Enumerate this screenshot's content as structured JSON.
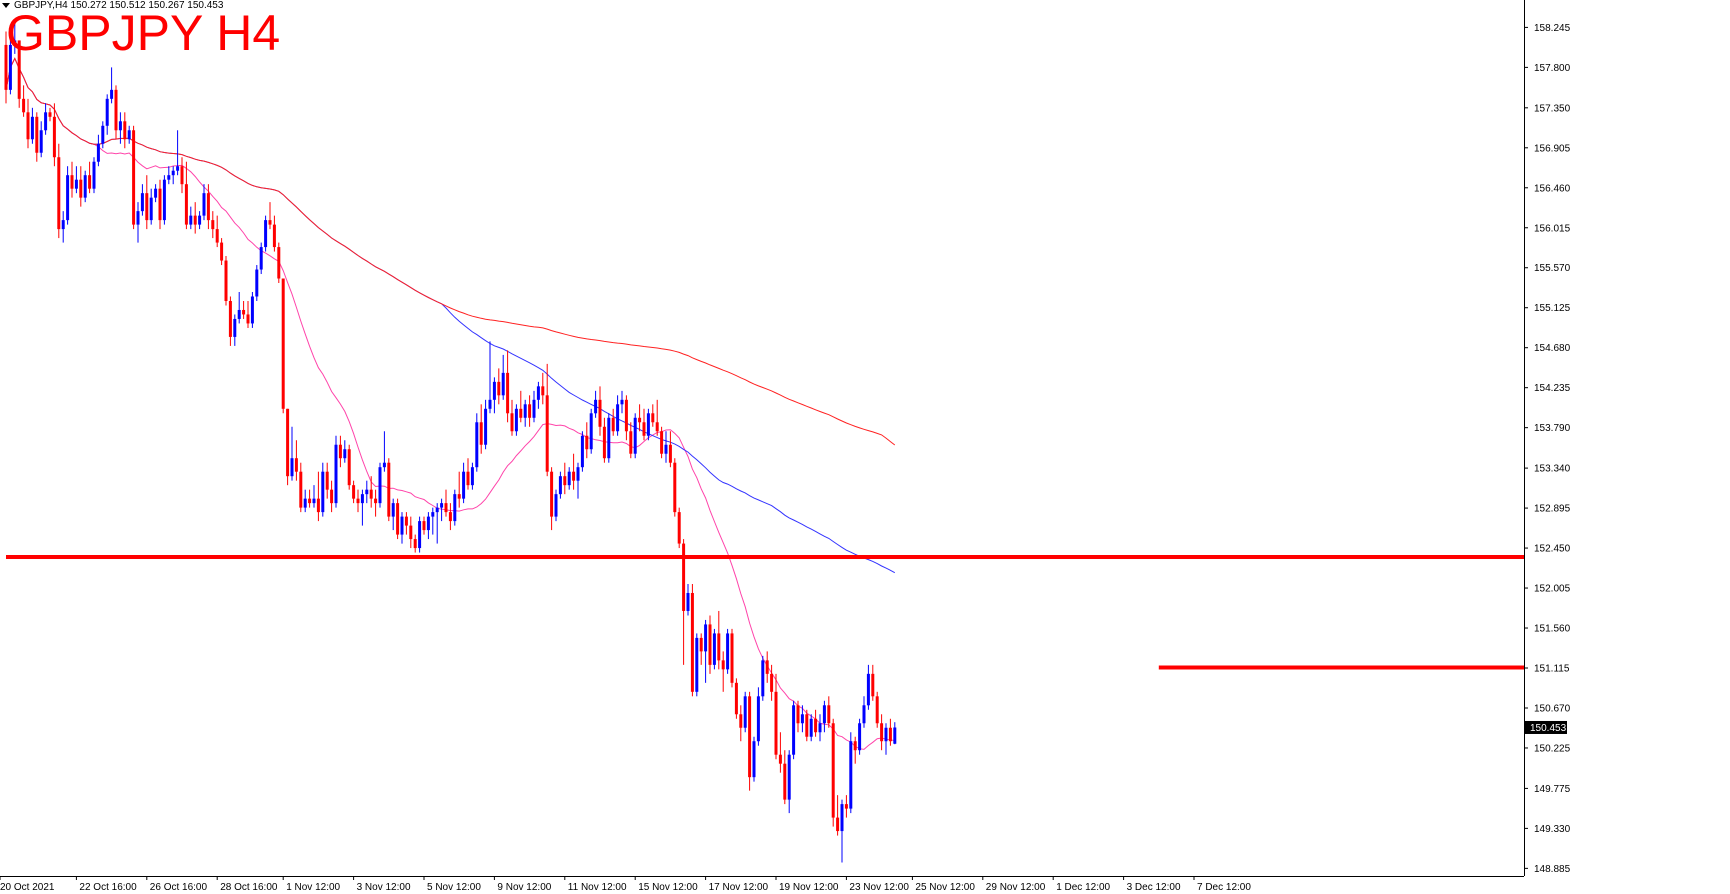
{
  "header": {
    "info_line": "GBPJPY,H4  150.272 150.512 150.267 150.453",
    "big_title": "GBPJPY H4"
  },
  "colors": {
    "background": "#ffffff",
    "bull_candle": "#0000ff",
    "bear_candle": "#ff0000",
    "ma_fast": "#ff44aa",
    "ma_mid": "#3333ff",
    "ma_slow": "#ff2222",
    "hline": "#ff0000",
    "price_tag_bg": "#000000"
  },
  "chart_data": {
    "type": "candlestick",
    "symbol": "GBPJPY",
    "timeframe": "H4",
    "ohlc_header": {
      "open": 150.272,
      "high": 150.512,
      "low": 150.267,
      "close": 150.453
    },
    "current_price_label": "150.453",
    "y_axis": {
      "range": [
        148.8,
        158.55
      ],
      "ticks": [
        "158.245",
        "157.800",
        "157.350",
        "156.905",
        "156.460",
        "156.015",
        "155.570",
        "155.125",
        "154.680",
        "154.235",
        "153.790",
        "153.340",
        "152.895",
        "152.450",
        "152.005",
        "151.560",
        "151.115",
        "150.670",
        "150.225",
        "149.775",
        "149.330",
        "148.885"
      ]
    },
    "x_axis": {
      "ticks": [
        {
          "label": "20 Oct 2021",
          "bar": 0
        },
        {
          "label": "22 Oct 16:00",
          "bar": 16
        },
        {
          "label": "26 Oct 16:00",
          "bar": 32
        },
        {
          "label": "28 Oct 16:00",
          "bar": 48
        },
        {
          "label": "1 Nov 12:00",
          "bar": 63
        },
        {
          "label": "3 Nov 12:00",
          "bar": 79
        },
        {
          "label": "5 Nov 12:00",
          "bar": 95
        },
        {
          "label": "9 Nov 12:00",
          "bar": 111
        },
        {
          "label": "11 Nov 12:00",
          "bar": 127
        },
        {
          "label": "15 Nov 12:00",
          "bar": 143
        },
        {
          "label": "17 Nov 12:00",
          "bar": 159
        },
        {
          "label": "19 Nov 12:00",
          "bar": 175
        },
        {
          "label": "23 Nov 12:00",
          "bar": 191
        },
        {
          "label": "25 Nov 12:00",
          "bar": 206
        },
        {
          "label": "29 Nov 12:00",
          "bar": 222
        },
        {
          "label": "1 Dec 12:00",
          "bar": 238
        },
        {
          "label": "3 Dec 12:00",
          "bar": 254
        },
        {
          "label": "7 Dec 12:00",
          "bar": 270
        }
      ]
    },
    "horizontal_levels": [
      {
        "price": 152.35,
        "from_bar": 0,
        "to_edge": true,
        "name": "support-line"
      },
      {
        "price": 151.12,
        "from_bar": 262,
        "to_edge": true,
        "name": "resistance-line"
      }
    ],
    "candles": [
      [
        158.05,
        158.2,
        157.4,
        157.55
      ],
      [
        157.55,
        158.15,
        157.5,
        158.05
      ],
      [
        158.05,
        158.3,
        157.95,
        158.1
      ],
      [
        158.1,
        158.1,
        157.35,
        157.45
      ],
      [
        157.45,
        157.6,
        157.25,
        157.3
      ],
      [
        157.3,
        157.45,
        156.9,
        157.0
      ],
      [
        157.0,
        157.35,
        156.95,
        157.25
      ],
      [
        157.25,
        157.3,
        156.75,
        156.85
      ],
      [
        156.85,
        157.2,
        156.8,
        157.1
      ],
      [
        157.1,
        157.4,
        157.05,
        157.3
      ],
      [
        157.3,
        157.35,
        157.2,
        157.25
      ],
      [
        157.25,
        157.4,
        156.7,
        156.8
      ],
      [
        156.8,
        156.95,
        155.9,
        156.0
      ],
      [
        156.0,
        156.2,
        155.85,
        156.1
      ],
      [
        156.1,
        156.7,
        156.05,
        156.6
      ],
      [
        156.6,
        156.75,
        156.35,
        156.45
      ],
      [
        156.45,
        156.7,
        156.4,
        156.55
      ],
      [
        156.55,
        156.7,
        156.25,
        156.35
      ],
      [
        156.35,
        156.65,
        156.3,
        156.6
      ],
      [
        156.6,
        156.75,
        156.4,
        156.45
      ],
      [
        156.45,
        156.8,
        156.4,
        156.75
      ],
      [
        156.75,
        157.05,
        156.7,
        156.95
      ],
      [
        156.95,
        157.2,
        156.9,
        157.15
      ],
      [
        157.15,
        157.5,
        157.05,
        157.45
      ],
      [
        157.45,
        157.8,
        157.4,
        157.55
      ],
      [
        157.55,
        157.6,
        157.0,
        157.1
      ],
      [
        157.1,
        157.3,
        156.95,
        157.2
      ],
      [
        157.2,
        157.3,
        156.9,
        157.0
      ],
      [
        157.0,
        157.15,
        156.95,
        157.1
      ],
      [
        157.1,
        157.15,
        156.0,
        156.05
      ],
      [
        156.05,
        156.3,
        155.85,
        156.2
      ],
      [
        156.2,
        156.5,
        156.15,
        156.4
      ],
      [
        156.4,
        156.6,
        156.0,
        156.1
      ],
      [
        156.1,
        156.45,
        156.05,
        156.35
      ],
      [
        156.35,
        156.5,
        156.3,
        156.45
      ],
      [
        156.45,
        156.55,
        156.0,
        156.1
      ],
      [
        156.1,
        156.6,
        156.05,
        156.55
      ],
      [
        156.55,
        156.7,
        156.5,
        156.6
      ],
      [
        156.6,
        156.7,
        156.5,
        156.65
      ],
      [
        156.65,
        157.1,
        156.6,
        156.7
      ],
      [
        156.7,
        156.8,
        156.4,
        156.5
      ],
      [
        156.5,
        156.75,
        156.0,
        156.05
      ],
      [
        156.05,
        156.25,
        156.0,
        156.15
      ],
      [
        156.15,
        156.3,
        155.95,
        156.05
      ],
      [
        156.05,
        156.2,
        156.0,
        156.15
      ],
      [
        156.15,
        156.5,
        156.1,
        156.4
      ],
      [
        156.4,
        156.5,
        156.0,
        156.1
      ],
      [
        156.1,
        156.2,
        155.9,
        156.0
      ],
      [
        156.0,
        156.15,
        155.8,
        155.85
      ],
      [
        155.85,
        155.9,
        155.6,
        155.65
      ],
      [
        155.65,
        155.7,
        155.15,
        155.2
      ],
      [
        155.2,
        155.25,
        154.7,
        154.8
      ],
      [
        154.8,
        155.05,
        154.7,
        155.0
      ],
      [
        155.0,
        155.3,
        154.95,
        155.1
      ],
      [
        155.1,
        155.2,
        155.0,
        155.05
      ],
      [
        155.05,
        155.2,
        154.9,
        154.95
      ],
      [
        154.95,
        155.3,
        154.9,
        155.25
      ],
      [
        155.25,
        155.6,
        155.2,
        155.55
      ],
      [
        155.55,
        155.85,
        155.5,
        155.8
      ],
      [
        155.8,
        156.15,
        155.75,
        156.1
      ],
      [
        156.1,
        156.3,
        156.0,
        156.05
      ],
      [
        156.05,
        156.15,
        155.75,
        155.8
      ],
      [
        155.8,
        155.85,
        155.4,
        155.45
      ],
      [
        155.45,
        155.45,
        153.95,
        154.0
      ],
      [
        154.0,
        154.0,
        153.15,
        153.25
      ],
      [
        153.25,
        153.8,
        153.2,
        153.45
      ],
      [
        153.45,
        153.65,
        153.2,
        153.3
      ],
      [
        153.3,
        153.4,
        152.85,
        152.9
      ],
      [
        152.9,
        153.1,
        152.85,
        153.0
      ],
      [
        153.0,
        153.1,
        152.9,
        152.95
      ],
      [
        152.95,
        153.15,
        152.9,
        153.0
      ],
      [
        153.0,
        153.3,
        152.75,
        152.85
      ],
      [
        152.85,
        153.4,
        152.8,
        153.3
      ],
      [
        153.3,
        153.4,
        153.0,
        153.1
      ],
      [
        153.1,
        153.2,
        152.85,
        152.95
      ],
      [
        152.95,
        153.7,
        152.9,
        153.6
      ],
      [
        153.6,
        153.7,
        153.35,
        153.45
      ],
      [
        153.45,
        153.65,
        153.4,
        153.55
      ],
      [
        153.55,
        153.6,
        153.1,
        153.15
      ],
      [
        153.15,
        153.2,
        152.95,
        153.0
      ],
      [
        153.0,
        153.1,
        152.85,
        152.95
      ],
      [
        152.95,
        153.1,
        152.7,
        153.05
      ],
      [
        153.05,
        153.2,
        152.95,
        153.1
      ],
      [
        153.1,
        153.25,
        152.9,
        153.0
      ],
      [
        153.0,
        153.1,
        152.8,
        152.95
      ],
      [
        152.95,
        153.4,
        152.9,
        153.35
      ],
      [
        153.35,
        153.75,
        153.3,
        153.4
      ],
      [
        153.4,
        153.45,
        152.75,
        152.8
      ],
      [
        152.8,
        153.0,
        152.65,
        152.95
      ],
      [
        152.95,
        153.0,
        152.55,
        152.6
      ],
      [
        152.6,
        152.85,
        152.5,
        152.8
      ],
      [
        152.8,
        152.85,
        152.6,
        152.7
      ],
      [
        152.7,
        152.8,
        152.45,
        152.55
      ],
      [
        152.55,
        152.6,
        152.4,
        152.45
      ],
      [
        152.45,
        152.8,
        152.4,
        152.75
      ],
      [
        152.75,
        152.8,
        152.6,
        152.65
      ],
      [
        152.65,
        152.85,
        152.55,
        152.8
      ],
      [
        152.8,
        152.9,
        152.6,
        152.85
      ],
      [
        152.85,
        152.95,
        152.5,
        152.9
      ],
      [
        152.9,
        153.0,
        152.75,
        152.95
      ],
      [
        152.95,
        153.1,
        152.8,
        152.85
      ],
      [
        152.85,
        152.95,
        152.65,
        152.75
      ],
      [
        152.75,
        153.1,
        152.7,
        153.05
      ],
      [
        153.05,
        153.3,
        152.9,
        153.0
      ],
      [
        153.0,
        153.4,
        152.95,
        153.3
      ],
      [
        153.3,
        153.45,
        153.1,
        153.15
      ],
      [
        153.15,
        153.4,
        153.1,
        153.35
      ],
      [
        153.35,
        153.95,
        153.3,
        153.85
      ],
      [
        153.85,
        154.05,
        153.5,
        153.6
      ],
      [
        153.6,
        154.1,
        153.55,
        154.0
      ],
      [
        154.0,
        154.75,
        153.95,
        154.1
      ],
      [
        154.1,
        154.35,
        153.95,
        154.3
      ],
      [
        154.3,
        154.45,
        154.05,
        154.15
      ],
      [
        154.15,
        154.6,
        154.1,
        154.4
      ],
      [
        154.4,
        154.65,
        153.85,
        153.95
      ],
      [
        153.95,
        154.1,
        153.7,
        153.75
      ],
      [
        153.75,
        154.05,
        153.7,
        154.0
      ],
      [
        154.0,
        154.2,
        153.85,
        153.9
      ],
      [
        153.9,
        154.1,
        153.8,
        154.05
      ],
      [
        154.05,
        154.15,
        153.8,
        153.9
      ],
      [
        153.9,
        154.2,
        153.85,
        154.1
      ],
      [
        154.1,
        154.3,
        154.0,
        154.25
      ],
      [
        154.25,
        154.4,
        154.05,
        154.15
      ],
      [
        154.15,
        154.5,
        153.25,
        153.3
      ],
      [
        153.3,
        153.35,
        152.65,
        152.8
      ],
      [
        152.8,
        153.1,
        152.75,
        153.05
      ],
      [
        153.05,
        153.3,
        153.0,
        153.25
      ],
      [
        153.25,
        153.4,
        153.05,
        153.15
      ],
      [
        153.15,
        153.35,
        153.1,
        153.3
      ],
      [
        153.3,
        153.5,
        153.1,
        153.2
      ],
      [
        153.2,
        153.4,
        153.0,
        153.35
      ],
      [
        153.35,
        153.75,
        153.3,
        153.7
      ],
      [
        153.7,
        153.85,
        153.45,
        153.55
      ],
      [
        153.55,
        154.0,
        153.5,
        153.95
      ],
      [
        153.95,
        154.2,
        153.9,
        154.1
      ],
      [
        154.1,
        154.25,
        153.7,
        153.8
      ],
      [
        153.8,
        153.9,
        153.4,
        153.45
      ],
      [
        153.45,
        153.95,
        153.4,
        153.9
      ],
      [
        153.9,
        154.0,
        153.7,
        153.75
      ],
      [
        153.75,
        154.15,
        153.7,
        154.05
      ],
      [
        154.05,
        154.2,
        153.95,
        154.1
      ],
      [
        154.1,
        154.15,
        153.65,
        153.75
      ],
      [
        153.75,
        153.85,
        153.45,
        153.5
      ],
      [
        153.5,
        153.95,
        153.45,
        153.9
      ],
      [
        153.9,
        154.05,
        153.75,
        153.85
      ],
      [
        153.85,
        154.0,
        153.65,
        153.7
      ],
      [
        153.7,
        154.0,
        153.65,
        153.95
      ],
      [
        153.95,
        154.05,
        153.8,
        153.85
      ],
      [
        153.85,
        154.1,
        153.7,
        153.75
      ],
      [
        153.75,
        153.8,
        153.45,
        153.5
      ],
      [
        153.5,
        153.75,
        153.4,
        153.6
      ],
      [
        153.6,
        153.75,
        153.35,
        153.4
      ],
      [
        153.4,
        153.45,
        152.8,
        152.85
      ],
      [
        152.85,
        152.9,
        152.45,
        152.5
      ],
      [
        152.5,
        152.55,
        151.15,
        151.75
      ],
      [
        151.75,
        152.05,
        151.7,
        151.95
      ],
      [
        151.95,
        152.05,
        150.8,
        150.85
      ],
      [
        150.85,
        151.5,
        150.8,
        151.45
      ],
      [
        151.45,
        151.5,
        151.15,
        151.3
      ],
      [
        151.3,
        151.65,
        150.95,
        151.6
      ],
      [
        151.6,
        151.7,
        151.05,
        151.15
      ],
      [
        151.15,
        151.55,
        151.1,
        151.5
      ],
      [
        151.5,
        151.75,
        151.1,
        151.2
      ],
      [
        151.2,
        151.3,
        150.85,
        151.1
      ],
      [
        151.1,
        151.55,
        151.05,
        151.5
      ],
      [
        151.5,
        151.55,
        150.9,
        150.95
      ],
      [
        150.95,
        151.0,
        150.55,
        150.6
      ],
      [
        150.6,
        150.7,
        150.3,
        150.45
      ],
      [
        150.45,
        150.85,
        150.4,
        150.8
      ],
      [
        150.8,
        150.85,
        149.75,
        149.9
      ],
      [
        149.9,
        150.35,
        149.85,
        150.3
      ],
      [
        150.3,
        150.9,
        150.25,
        150.8
      ],
      [
        150.8,
        151.25,
        150.75,
        151.2
      ],
      [
        151.2,
        151.3,
        150.95,
        151.05
      ],
      [
        151.05,
        151.15,
        150.75,
        150.85
      ],
      [
        150.85,
        151.05,
        150.1,
        150.15
      ],
      [
        150.15,
        150.4,
        149.95,
        150.05
      ],
      [
        150.05,
        150.2,
        149.6,
        149.65
      ],
      [
        149.65,
        150.2,
        149.5,
        150.15
      ],
      [
        150.15,
        150.75,
        150.1,
        150.7
      ],
      [
        150.7,
        150.75,
        150.4,
        150.5
      ],
      [
        150.5,
        150.7,
        150.4,
        150.6
      ],
      [
        150.6,
        150.65,
        150.3,
        150.35
      ],
      [
        150.35,
        150.6,
        150.3,
        150.55
      ],
      [
        150.55,
        150.65,
        150.35,
        150.4
      ],
      [
        150.4,
        150.6,
        150.3,
        150.5
      ],
      [
        150.5,
        150.75,
        150.4,
        150.7
      ],
      [
        150.7,
        150.8,
        150.45,
        150.5
      ],
      [
        150.5,
        150.55,
        149.35,
        149.45
      ],
      [
        149.45,
        149.7,
        149.25,
        149.3
      ],
      [
        149.3,
        149.65,
        148.95,
        149.6
      ],
      [
        149.6,
        149.7,
        149.45,
        149.55
      ],
      [
        149.55,
        150.4,
        149.5,
        150.3
      ],
      [
        150.3,
        150.35,
        150.05,
        150.2
      ],
      [
        150.2,
        150.55,
        150.15,
        150.5
      ],
      [
        150.5,
        150.8,
        150.45,
        150.7
      ],
      [
        150.7,
        151.15,
        150.65,
        151.05
      ],
      [
        151.05,
        151.15,
        150.75,
        150.8
      ],
      [
        150.8,
        150.85,
        150.45,
        150.5
      ],
      [
        150.5,
        150.6,
        150.2,
        150.3
      ],
      [
        150.3,
        150.5,
        150.15,
        150.45
      ],
      [
        150.45,
        150.55,
        150.25,
        150.3
      ],
      [
        150.272,
        150.512,
        150.267,
        150.453
      ]
    ],
    "moving_averages": [
      {
        "name": "fast",
        "period": 21
      },
      {
        "name": "mid",
        "period": 100
      },
      {
        "name": "slow",
        "period": 200
      }
    ]
  }
}
